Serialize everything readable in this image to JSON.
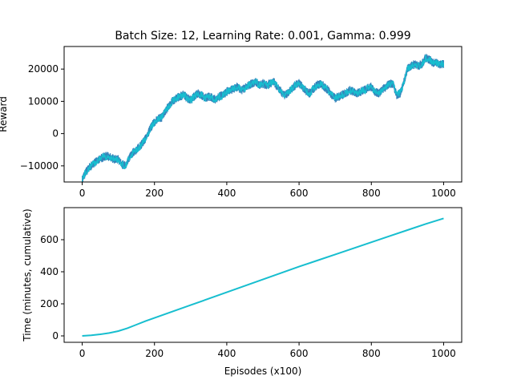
{
  "title": "Batch Size: 12, Learning Rate: 0.001, Gamma: 0.999",
  "chart_data": [
    {
      "type": "line",
      "title": "Batch Size: 12, Learning Rate: 0.001, Gamma: 0.999",
      "xlabel": "",
      "ylabel": "Reward",
      "xlim": [
        -50,
        1050
      ],
      "ylim": [
        -15000,
        27000
      ],
      "xticks": [
        0,
        200,
        400,
        600,
        800,
        1000
      ],
      "yticks": [
        -10000,
        0,
        10000,
        20000
      ],
      "xtick_labels": [
        "0",
        "200",
        "400",
        "600",
        "800",
        "1000"
      ],
      "ytick_labels": [
        "−10000",
        "0",
        "10000",
        "20000"
      ],
      "grid": false,
      "colors": {
        "band": "#1f77b4",
        "line": "#17becf"
      },
      "series": [
        {
          "x": [
            0,
            10,
            20,
            30,
            40,
            50,
            60,
            70,
            80,
            90,
            100,
            110,
            120,
            130,
            140,
            150,
            160,
            170,
            180,
            190,
            200,
            210,
            220,
            230,
            240,
            250,
            260,
            270,
            280,
            290,
            300,
            310,
            320,
            330,
            340,
            350,
            360,
            370,
            380,
            390,
            400,
            410,
            420,
            430,
            440,
            450,
            460,
            470,
            480,
            490,
            500,
            510,
            520,
            530,
            540,
            550,
            560,
            570,
            580,
            590,
            600,
            610,
            620,
            630,
            640,
            650,
            660,
            670,
            680,
            690,
            700,
            710,
            720,
            730,
            740,
            750,
            760,
            770,
            780,
            790,
            800,
            810,
            820,
            830,
            840,
            850,
            860,
            870,
            880,
            890,
            900,
            910,
            920,
            930,
            940,
            950,
            960,
            970,
            980,
            990,
            1000
          ],
          "y": [
            -14000,
            -12000,
            -10500,
            -9500,
            -8500,
            -7800,
            -7200,
            -7000,
            -7500,
            -8000,
            -8000,
            -9500,
            -10000,
            -7500,
            -6000,
            -5000,
            -4000,
            -2500,
            -500,
            2000,
            3500,
            4500,
            5000,
            7000,
            8500,
            10000,
            11000,
            11500,
            12000,
            11000,
            10500,
            11500,
            12500,
            12000,
            11000,
            11500,
            11000,
            10500,
            11500,
            12000,
            13000,
            13500,
            14000,
            14500,
            13500,
            14000,
            15000,
            15500,
            16000,
            15000,
            15500,
            15000,
            15500,
            16000,
            14500,
            13000,
            12000,
            12500,
            14000,
            15000,
            15500,
            14500,
            13000,
            12500,
            14000,
            15000,
            15500,
            14500,
            13500,
            12000,
            11000,
            11500,
            12000,
            12500,
            13500,
            13000,
            12500,
            13000,
            13500,
            14000,
            14500,
            13000,
            12500,
            13500,
            14500,
            15500,
            15500,
            12000,
            12500,
            16000,
            20000,
            21000,
            21500,
            21000,
            21500,
            23500,
            23000,
            22000,
            22000,
            21500,
            21500
          ]
        }
      ]
    },
    {
      "type": "line",
      "title": "",
      "xlabel": "Episodes (x100)",
      "ylabel": "Time (minutes, cumulative)",
      "xlim": [
        -50,
        1050
      ],
      "ylim": [
        -40,
        800
      ],
      "xticks": [
        0,
        200,
        400,
        600,
        800,
        1000
      ],
      "yticks": [
        0,
        200,
        400,
        600
      ],
      "xtick_labels": [
        "0",
        "200",
        "400",
        "600",
        "800",
        "1000"
      ],
      "ytick_labels": [
        "0",
        "200",
        "400",
        "600"
      ],
      "grid": false,
      "colors": {
        "line": "#17becf"
      },
      "series": [
        {
          "x": [
            0,
            25,
            50,
            75,
            100,
            125,
            150,
            175,
            200,
            250,
            300,
            350,
            400,
            450,
            500,
            550,
            600,
            650,
            700,
            750,
            800,
            850,
            900,
            950,
            1000
          ],
          "y": [
            0,
            4,
            10,
            18,
            30,
            48,
            70,
            92,
            112,
            152,
            192,
            232,
            272,
            312,
            352,
            392,
            432,
            470,
            508,
            546,
            584,
            622,
            660,
            698,
            733
          ]
        }
      ]
    }
  ]
}
